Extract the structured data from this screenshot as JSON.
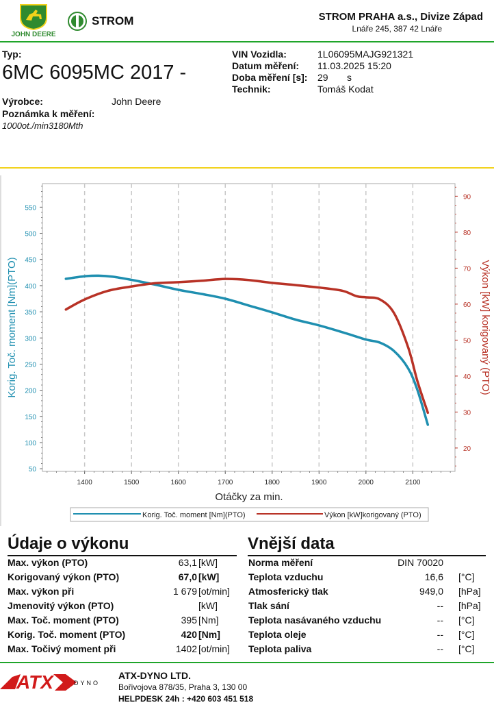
{
  "header": {
    "jd_logo_text": "JOHN DEERE",
    "strom_logo_text": "STROM",
    "company": "STROM PRAHA a.s., Divize Západ",
    "address": "Lnáře 245, 387 42 Lnáře"
  },
  "info": {
    "type_label": "Typ:",
    "type_value": "6MC 6095MC 2017 -",
    "maker_label": "Výrobce:",
    "maker_value": "John Deere",
    "note_label": "Poznámka k měření:",
    "note_value": "1000ot./min3180Mth",
    "vin_label": "VIN Vozidla:",
    "vin_value": "1L06095MAJG921321",
    "date_label": "Datum měření:",
    "date_value": "11.03.2025 15:20",
    "duration_label": "Doba měření [s]:",
    "duration_value": "29",
    "duration_unit": "s",
    "tech_label": "Technik:",
    "tech_value": "Tomáš Kodat"
  },
  "chart_data": {
    "type": "line",
    "xlabel": "Otáčky za min.",
    "ylabel_left": "Korig. Toč. moment [Nm](PTO)",
    "ylabel_right": "Výkon [kW] korigovaný (PTO)",
    "x_ticks": [
      "1400",
      "1500",
      "1600",
      "1700",
      "1800",
      "1900",
      "2000",
      "2100"
    ],
    "y_left_ticks": [
      "50",
      "100",
      "150",
      "200",
      "250",
      "300",
      "350",
      "400",
      "450",
      "500",
      "550"
    ],
    "y_right_ticks": [
      "20",
      "30",
      "40",
      "50",
      "60",
      "70",
      "80",
      "90"
    ],
    "xlim": [
      1310,
      2190
    ],
    "ylim_left": [
      45,
      595
    ],
    "ylim_right": [
      13.5,
      93.5
    ],
    "grid": "vertical dashed",
    "legend_position": "bottom",
    "series": [
      {
        "name": "Korig. Toč. moment [Nm](PTO)",
        "axis": "left",
        "color": "#1f8fb0",
        "x": [
          1360,
          1400,
          1430,
          1460,
          1500,
          1550,
          1600,
          1650,
          1700,
          1750,
          1800,
          1850,
          1900,
          1950,
          2000,
          2030,
          2060,
          2090,
          2110,
          2132
        ],
        "y": [
          413,
          418,
          419,
          417,
          411,
          402,
          392,
          384,
          375,
          362,
          349,
          335,
          324,
          311,
          297,
          291,
          275,
          242,
          200,
          134
        ]
      },
      {
        "name": "Výkon [kW]korigovaný (PTO)",
        "axis": "right",
        "color": "#b83226",
        "x": [
          1360,
          1400,
          1450,
          1500,
          1550,
          1600,
          1650,
          1700,
          1750,
          1800,
          1850,
          1900,
          1950,
          1980,
          2000,
          2030,
          2060,
          2090,
          2110,
          2132
        ],
        "y": [
          58.5,
          61.3,
          63.7,
          64.9,
          65.8,
          66.1,
          66.5,
          67.0,
          66.7,
          65.9,
          65.3,
          64.6,
          63.7,
          62.2,
          61.9,
          61.3,
          57.5,
          48.0,
          38.5,
          29.8
        ]
      }
    ]
  },
  "performance": {
    "title": "Údaje o výkonu",
    "rows": [
      {
        "label": "Max. výkon (PTO)",
        "value": "63,1",
        "unit": "[kW]",
        "bold": false
      },
      {
        "label": "Korigovaný výkon (PTO)",
        "value": "67,0",
        "unit": "[kW]",
        "bold": true
      },
      {
        "label": "Max. výkon při",
        "value": "1 679",
        "unit": "[ot/min]",
        "bold": false
      },
      {
        "label": "Jmenovitý výkon (PTO)",
        "value": "",
        "unit": "[kW]",
        "bold": false
      },
      {
        "label": "Max. Toč. moment (PTO)",
        "value": "395",
        "unit": "[Nm]",
        "bold": false
      },
      {
        "label": "Korig. Toč. moment (PTO)",
        "value": "420",
        "unit": "[Nm]",
        "bold": true
      },
      {
        "label": "Max. Točivý moment při",
        "value": "1402",
        "unit": "[ot/min]",
        "bold": false
      }
    ]
  },
  "external": {
    "title": "Vnější data",
    "rows": [
      {
        "label": "Norma měření",
        "value": "DIN 70020",
        "unit": ""
      },
      {
        "label": "Teplota vzduchu",
        "value": "16,6",
        "unit": "[°C]"
      },
      {
        "label": "Atmosferický tlak",
        "value": "949,0",
        "unit": "[hPa]"
      },
      {
        "label": "Tlak sání",
        "value": "--",
        "unit": "[hPa]"
      },
      {
        "label": "Teplota nasávaného vzduchu",
        "value": "--",
        "unit": "[°C]"
      },
      {
        "label": "Teplota oleje",
        "value": "--",
        "unit": "[°C]"
      },
      {
        "label": "Teplota paliva",
        "value": "--",
        "unit": "[°C]"
      }
    ]
  },
  "footer": {
    "logo_text": "ATX",
    "logo_sub": "DYNO",
    "company": "ATX-DYNO LTD.",
    "address": "Bořivojova 878/35, Praha 3, 130 00",
    "helpdesk": "HELPDESK 24h : +420 603 451 518"
  }
}
